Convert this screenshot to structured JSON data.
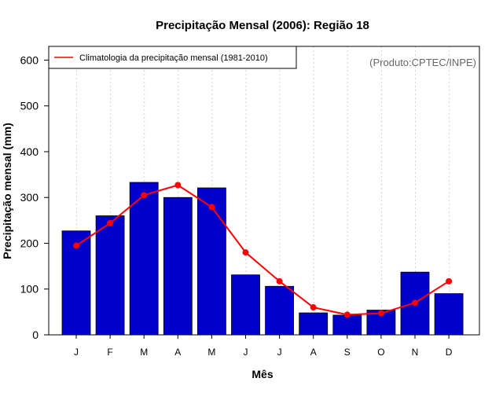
{
  "chart_data": {
    "type": "bar",
    "title": "Precipitação Mensal (2006): Região 18",
    "xlabel": "Mês",
    "ylabel": "Precipitação mensal (mm)",
    "ylim": [
      0,
      630
    ],
    "yticks": [
      "0",
      "100",
      "200",
      "300",
      "400",
      "500",
      "600"
    ],
    "categories": [
      "J",
      "F",
      "M",
      "A",
      "M",
      "J",
      "J",
      "A",
      "S",
      "O",
      "N",
      "D"
    ],
    "series": [
      {
        "name": "Precipitação mensal (2006)",
        "type": "bar",
        "color": "#0000cc",
        "values": [
          227,
          260,
          333,
          300,
          321,
          131,
          106,
          48,
          43,
          54,
          137,
          90
        ]
      },
      {
        "name": "Climatologia da precipitação mensal (1981-2010)",
        "type": "line",
        "color": "#ff0000",
        "values": [
          195,
          244,
          305,
          327,
          279,
          180,
          117,
          60,
          44,
          47,
          70,
          117
        ]
      }
    ],
    "legend": {
      "position": "top-left",
      "entry": "Climatologia da precipitação mensal (1981-2010)"
    },
    "grid": "vertical-dotted",
    "credit": "(Produto:CPTEC/INPE)"
  }
}
